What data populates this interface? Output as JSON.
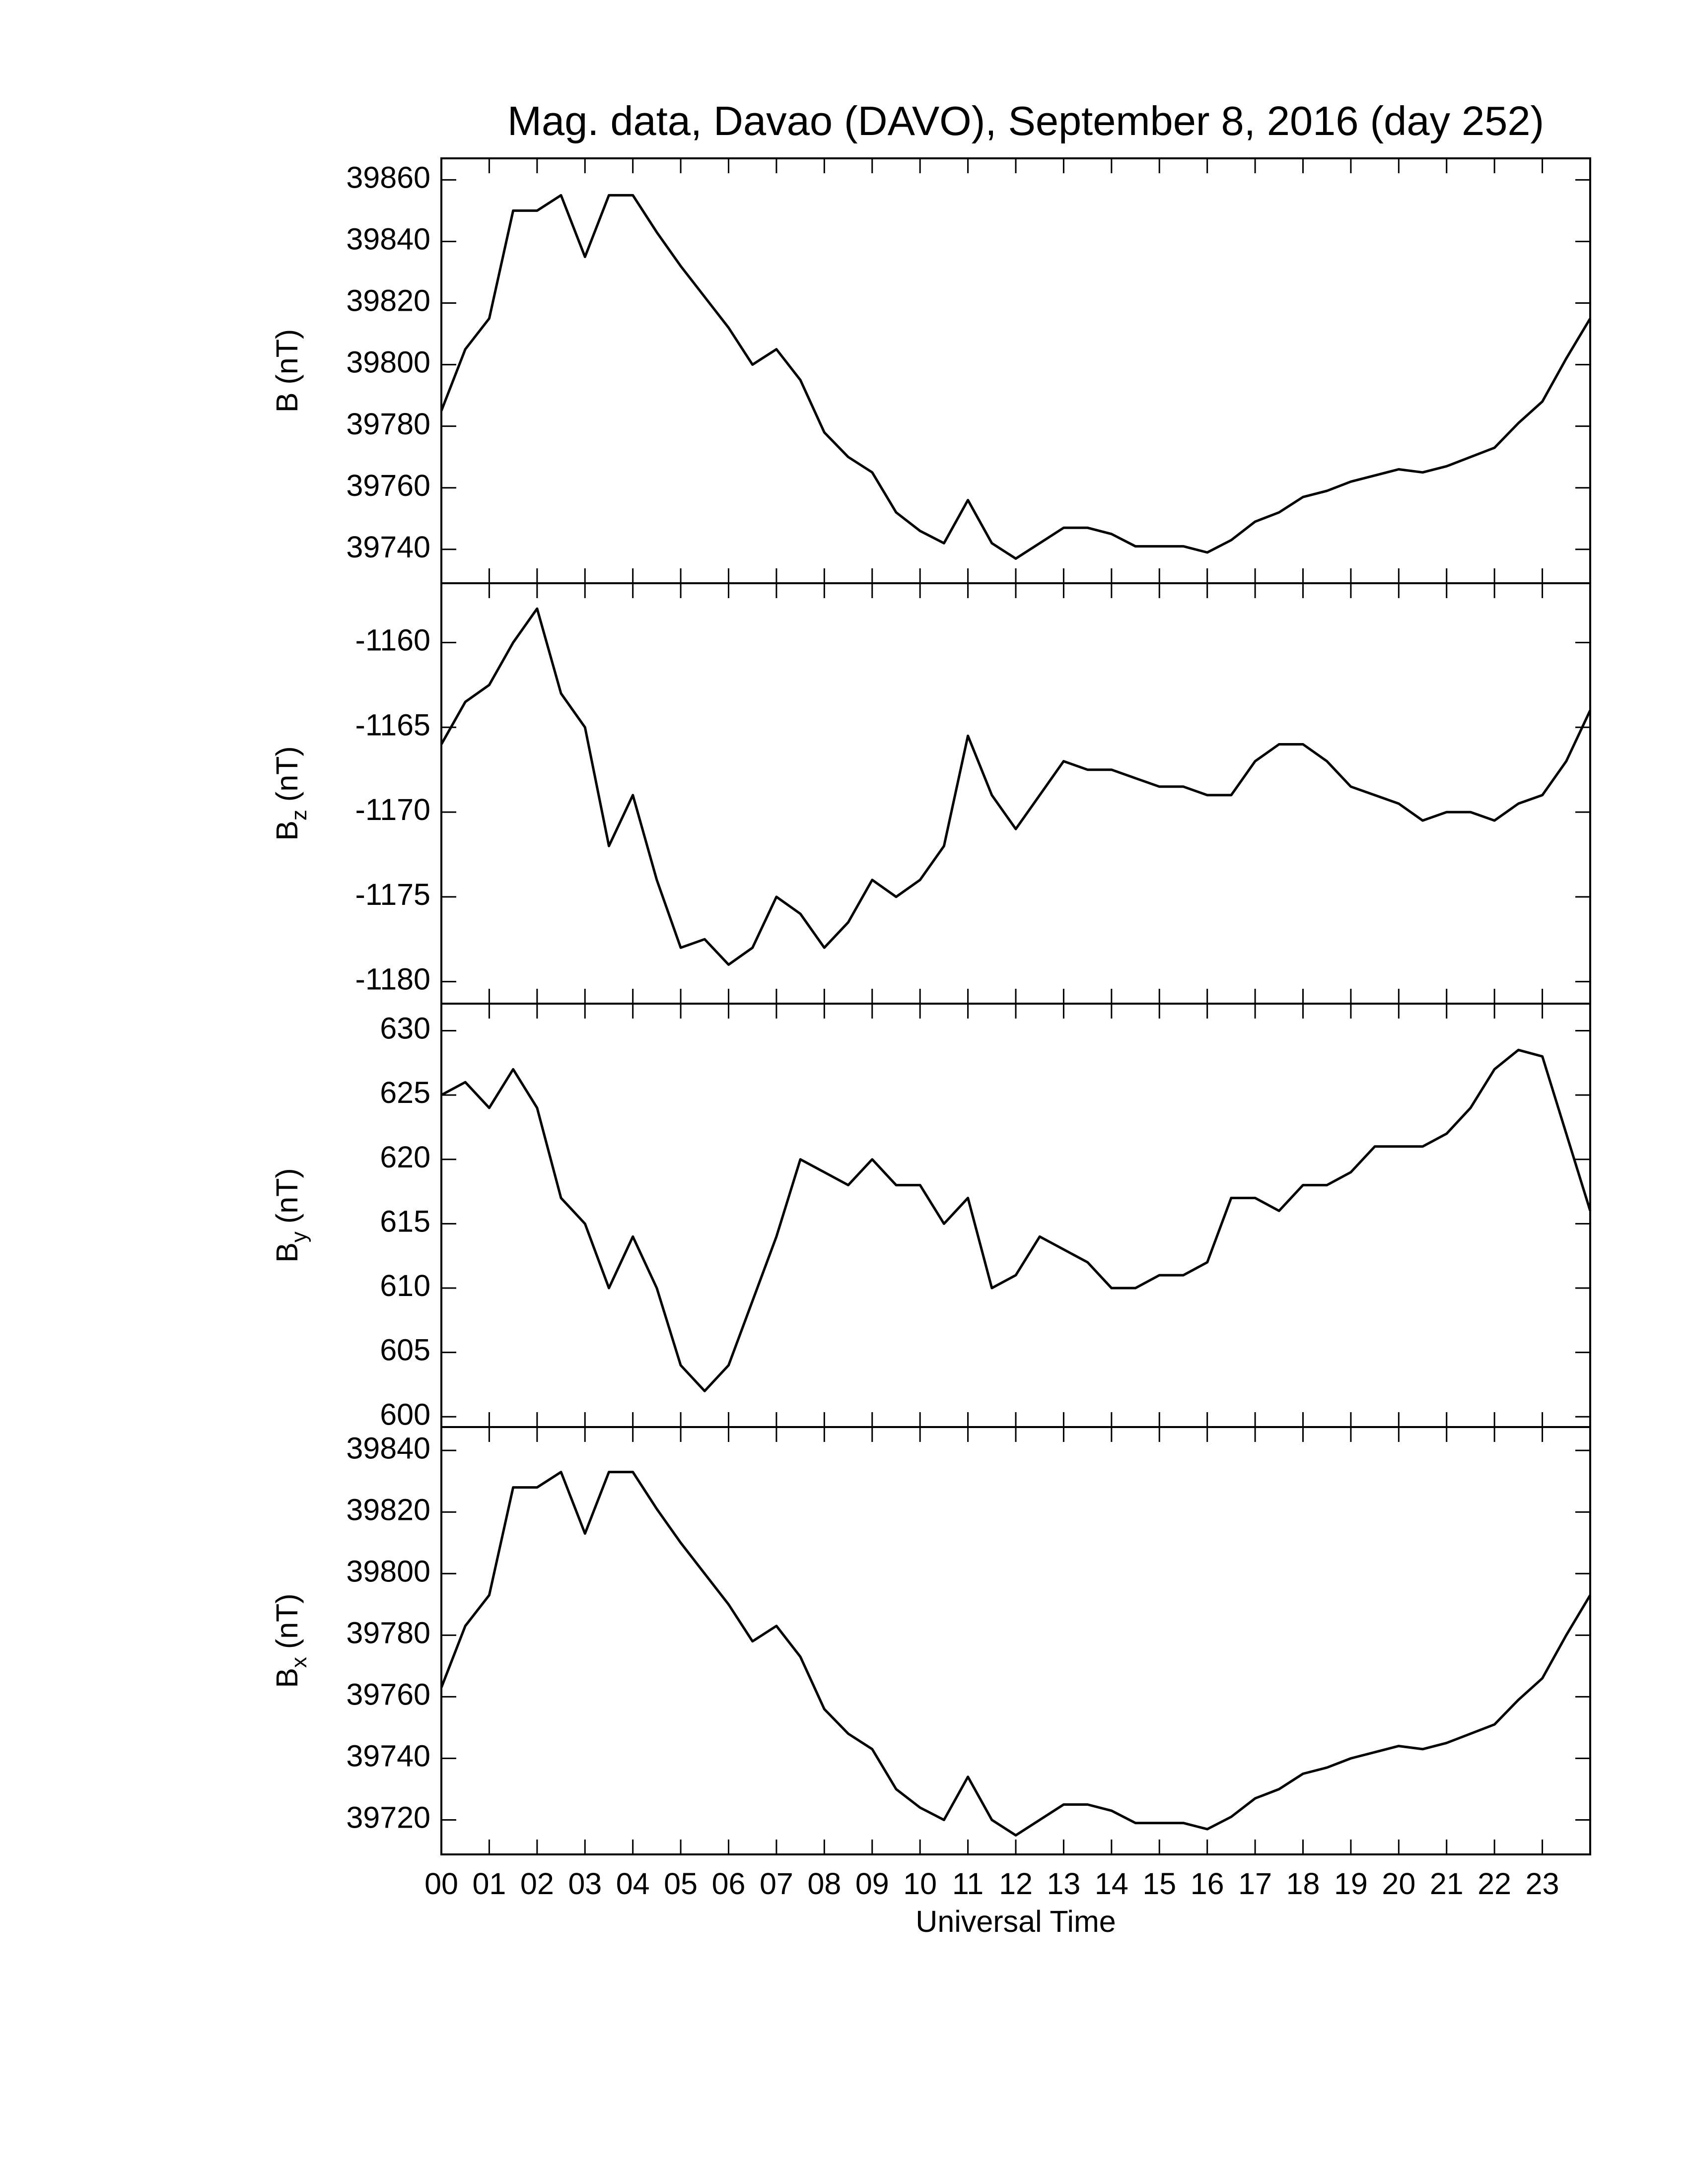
{
  "chart_data": [
    {
      "type": "line",
      "title": "Mag. data, Davao (DAVO), September 8, 2016 (day 252)",
      "ylabel": "B",
      "ylabel_unit": "(nT)",
      "color": "#000000",
      "xlim": [
        0,
        24
      ],
      "ylim": [
        39729,
        39867
      ],
      "yticks": [
        39740,
        39760,
        39780,
        39800,
        39820,
        39840,
        39860
      ],
      "x": [
        0,
        0.5,
        1,
        1.5,
        2,
        2.5,
        3,
        3.5,
        4,
        4.5,
        5,
        5.5,
        6,
        6.5,
        7,
        7.5,
        8,
        8.5,
        9,
        9.5,
        10,
        10.5,
        11,
        11.5,
        12,
        12.5,
        13,
        13.5,
        14,
        14.5,
        15,
        15.5,
        16,
        16.5,
        17,
        17.5,
        18,
        18.5,
        19,
        19.5,
        20,
        20.5,
        21,
        21.5,
        22,
        22.5,
        23,
        23.5,
        24
      ],
      "values": [
        39785,
        39805,
        39815,
        39850,
        39850,
        39855,
        39835,
        39855,
        39855,
        39843,
        39832,
        39822,
        39812,
        39800,
        39805,
        39795,
        39778,
        39770,
        39765,
        39752,
        39746,
        39742,
        39756,
        39742,
        39737,
        39742,
        39747,
        39747,
        39745,
        39741,
        39741,
        39741,
        39739,
        39743,
        39749,
        39752,
        39757,
        39759,
        39762,
        39764,
        39766,
        39765,
        39767,
        39770,
        39773,
        39781,
        39788,
        39802,
        39815
      ]
    },
    {
      "type": "line",
      "ylabel": "B",
      "ylabel_sub": "z",
      "ylabel_unit": "(nT)",
      "color": "#000000",
      "xlim": [
        0,
        24
      ],
      "ylim": [
        -1181.3,
        -1156.5
      ],
      "yticks": [
        -1180,
        -1175,
        -1170,
        -1165,
        -1160
      ],
      "x": [
        0,
        0.5,
        1,
        1.5,
        2,
        2.5,
        3,
        3.5,
        4,
        4.5,
        5,
        5.5,
        6,
        6.5,
        7,
        7.5,
        8,
        8.5,
        9,
        9.5,
        10,
        10.5,
        11,
        11.5,
        12,
        12.5,
        13,
        13.5,
        14,
        14.5,
        15,
        15.5,
        16,
        16.5,
        17,
        17.5,
        18,
        18.5,
        19,
        19.5,
        20,
        20.5,
        21,
        21.5,
        22,
        22.5,
        23,
        23.5,
        24
      ],
      "values": [
        -1166,
        -1163.5,
        -1162.5,
        -1160,
        -1158,
        -1163,
        -1165,
        -1172,
        -1169,
        -1174,
        -1178,
        -1177.5,
        -1179,
        -1178,
        -1175,
        -1176,
        -1178,
        -1176.5,
        -1174,
        -1175,
        -1174,
        -1172,
        -1165.5,
        -1169,
        -1171,
        -1169,
        -1167,
        -1167.5,
        -1167.5,
        -1168,
        -1168.5,
        -1168.5,
        -1169,
        -1169,
        -1167,
        -1166,
        -1166,
        -1167,
        -1168.5,
        -1169,
        -1169.5,
        -1170.5,
        -1170,
        -1170,
        -1170.5,
        -1169.5,
        -1169,
        -1167,
        -1164
      ]
    },
    {
      "type": "line",
      "ylabel": "B",
      "ylabel_sub": "y",
      "ylabel_unit": "(nT)",
      "color": "#000000",
      "xlim": [
        0,
        24
      ],
      "ylim": [
        599.2,
        632.1
      ],
      "yticks": [
        600,
        605,
        610,
        615,
        620,
        625,
        630
      ],
      "x": [
        0,
        0.5,
        1,
        1.5,
        2,
        2.5,
        3,
        3.5,
        4,
        4.5,
        5,
        5.5,
        6,
        6.5,
        7,
        7.5,
        8,
        8.5,
        9,
        9.5,
        10,
        10.5,
        11,
        11.5,
        12,
        12.5,
        13,
        13.5,
        14,
        14.5,
        15,
        15.5,
        16,
        16.5,
        17,
        17.5,
        18,
        18.5,
        19,
        19.5,
        20,
        20.5,
        21,
        21.5,
        22,
        22.5,
        23,
        23.5,
        24
      ],
      "values": [
        625,
        626,
        624,
        627,
        624,
        617,
        615,
        610,
        614,
        610,
        604,
        602,
        604,
        609,
        614,
        620,
        619,
        618,
        620,
        618,
        618,
        615,
        617,
        610,
        611,
        614,
        613,
        612,
        610,
        610,
        611,
        611,
        612,
        617,
        617,
        616,
        618,
        618,
        619,
        621,
        621,
        621,
        622,
        624,
        627,
        628.5,
        628,
        622,
        616
      ]
    },
    {
      "type": "line",
      "ylabel": "B",
      "ylabel_sub": "x",
      "ylabel_unit": "(nT)",
      "xlabel": "Universal Time",
      "color": "#000000",
      "xlim": [
        0,
        24
      ],
      "ylim": [
        39708.8,
        39847.6
      ],
      "yticks": [
        39720,
        39740,
        39760,
        39780,
        39800,
        39820,
        39840
      ],
      "xticks": [
        {
          "value": 0,
          "label": "00"
        },
        {
          "value": 1,
          "label": "01"
        },
        {
          "value": 2,
          "label": "02"
        },
        {
          "value": 3,
          "label": "03"
        },
        {
          "value": 4,
          "label": "04"
        },
        {
          "value": 5,
          "label": "05"
        },
        {
          "value": 6,
          "label": "06"
        },
        {
          "value": 7,
          "label": "07"
        },
        {
          "value": 8,
          "label": "08"
        },
        {
          "value": 9,
          "label": "09"
        },
        {
          "value": 10,
          "label": "10"
        },
        {
          "value": 11,
          "label": "11"
        },
        {
          "value": 12,
          "label": "12"
        },
        {
          "value": 13,
          "label": "13"
        },
        {
          "value": 14,
          "label": "14"
        },
        {
          "value": 15,
          "label": "15"
        },
        {
          "value": 16,
          "label": "16"
        },
        {
          "value": 17,
          "label": "17"
        },
        {
          "value": 18,
          "label": "18"
        },
        {
          "value": 19,
          "label": "19"
        },
        {
          "value": 20,
          "label": "20"
        },
        {
          "value": 21,
          "label": "21"
        },
        {
          "value": 22,
          "label": "22"
        },
        {
          "value": 23,
          "label": "23"
        }
      ],
      "x": [
        0,
        0.5,
        1,
        1.5,
        2,
        2.5,
        3,
        3.5,
        4,
        4.5,
        5,
        5.5,
        6,
        6.5,
        7,
        7.5,
        8,
        8.5,
        9,
        9.5,
        10,
        10.5,
        11,
        11.5,
        12,
        12.5,
        13,
        13.5,
        14,
        14.5,
        15,
        15.5,
        16,
        16.5,
        17,
        17.5,
        18,
        18.5,
        19,
        19.5,
        20,
        20.5,
        21,
        21.5,
        22,
        22.5,
        23,
        23.5,
        24
      ],
      "values": [
        39763,
        39783,
        39793,
        39828,
        39828,
        39833,
        39813,
        39833,
        39833,
        39821,
        39810,
        39800,
        39790,
        39778,
        39783,
        39773,
        39756,
        39748,
        39743,
        39730,
        39724,
        39720,
        39734,
        39720,
        39715,
        39720,
        39725,
        39725,
        39723,
        39719,
        39719,
        39719,
        39717,
        39721,
        39727,
        39730,
        39735,
        39737,
        39740,
        39742,
        39744,
        39743,
        39745,
        39748,
        39751,
        39759,
        39766,
        39780,
        39793
      ]
    }
  ]
}
